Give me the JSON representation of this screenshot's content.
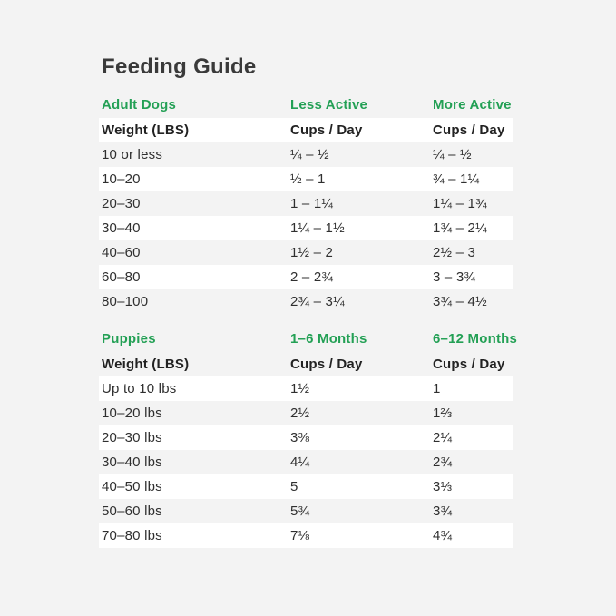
{
  "page": {
    "title": "Feeding Guide"
  },
  "colors": {
    "accent_green": "#23a055",
    "background": "#f3f3f3",
    "row_white": "#ffffff",
    "title_text": "#3a3a3a",
    "body_text": "#2f2f2f"
  },
  "adult_table": {
    "section_label": "Adult Dogs",
    "col2_label": "Less Active",
    "col3_label": "More Active",
    "header": {
      "weight": "Weight (LBS)",
      "less_active": "Cups / Day",
      "more_active": "Cups / Day"
    },
    "rows": [
      {
        "weight": "10 or less",
        "less_active": "¼ – ½",
        "more_active": "¼ – ½"
      },
      {
        "weight": "10–20",
        "less_active": "½ – 1",
        "more_active": "¾ – 1¼"
      },
      {
        "weight": "20–30",
        "less_active": "1 – 1¼",
        "more_active": "1¼ – 1¾"
      },
      {
        "weight": "30–40",
        "less_active": "1¼ – 1½",
        "more_active": "1¾ – 2¼"
      },
      {
        "weight": "40–60",
        "less_active": "1½ – 2",
        "more_active": "2½ – 3"
      },
      {
        "weight": "60–80",
        "less_active": "2 – 2¾",
        "more_active": "3 – 3¾"
      },
      {
        "weight": "80–100",
        "less_active": "2¾ – 3¼",
        "more_active": "3¾ – 4½"
      }
    ]
  },
  "puppy_table": {
    "section_label": "Puppies",
    "col2_label": "1–6 Months",
    "col3_label": "6–12 Months",
    "header": {
      "weight": "Weight (LBS)",
      "months_1_6": "Cups / Day",
      "months_6_12": "Cups / Day"
    },
    "rows": [
      {
        "weight": "Up to 10 lbs",
        "months_1_6": "1½",
        "months_6_12": "1"
      },
      {
        "weight": "10–20 lbs",
        "months_1_6": "2½",
        "months_6_12": "1⅔"
      },
      {
        "weight": "20–30 lbs",
        "months_1_6": "3⅜",
        "months_6_12": "2¼"
      },
      {
        "weight": "30–40 lbs",
        "months_1_6": "4¼",
        "months_6_12": "2¾"
      },
      {
        "weight": "40–50 lbs",
        "months_1_6": "5",
        "months_6_12": "3⅓"
      },
      {
        "weight": "50–60 lbs",
        "months_1_6": "5¾",
        "months_6_12": "3¾"
      },
      {
        "weight": "70–80 lbs",
        "months_1_6": "7⅛",
        "months_6_12": "4¾"
      }
    ]
  }
}
